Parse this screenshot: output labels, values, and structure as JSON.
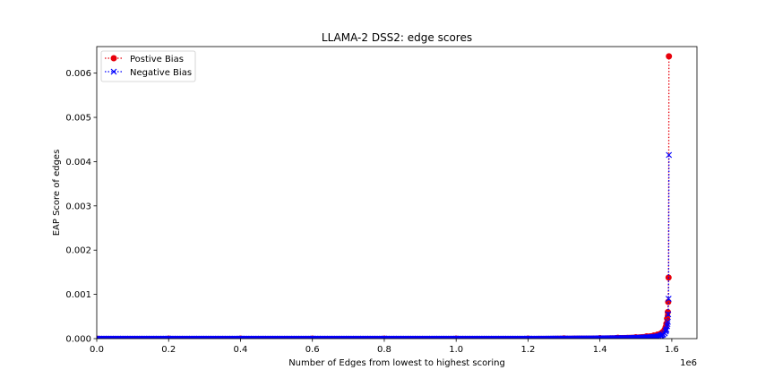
{
  "chart_data": {
    "type": "line",
    "title": "LLAMA-2 DSS2: edge scores",
    "xlabel": "Number of Edges from lowest to highest scoring",
    "ylabel": "EAP Score of edges",
    "x_offset_label": "1e6",
    "xlim": [
      0,
      1.67
    ],
    "ylim": [
      0,
      0.0066
    ],
    "x_ticks": [
      0.0,
      0.2,
      0.4,
      0.6,
      0.8,
      1.0,
      1.2,
      1.4,
      1.6
    ],
    "x_tick_labels": [
      "0.0",
      "0.2",
      "0.4",
      "0.6",
      "0.8",
      "1.0",
      "1.2",
      "1.4",
      "1.6"
    ],
    "y_ticks": [
      0.0,
      0.001,
      0.002,
      0.003,
      0.004,
      0.005,
      0.006
    ],
    "y_tick_labels": [
      "0.000",
      "0.001",
      "0.002",
      "0.003",
      "0.004",
      "0.005",
      "0.006"
    ],
    "grid": false,
    "legend_position": "upper-left",
    "series": [
      {
        "name": "Postive Bias",
        "color": "#e8000b",
        "marker": "circle",
        "linestyle": "dotted",
        "x": [
          0.0,
          0.2,
          0.4,
          0.6,
          0.8,
          1.0,
          1.2,
          1.3,
          1.4,
          1.45,
          1.5,
          1.53,
          1.55,
          1.56,
          1.57,
          1.575,
          1.58,
          1.583,
          1.585,
          1.587,
          1.589,
          1.59,
          1.591,
          1.592
        ],
        "y": [
          0.0,
          0.0,
          0.0,
          0.0,
          0.0,
          0.0,
          0.0,
          5e-06,
          1e-05,
          1.8e-05,
          3e-05,
          5e-05,
          7e-05,
          9e-05,
          0.00012,
          0.00015,
          0.0002,
          0.00026,
          0.00034,
          0.00045,
          0.0006,
          0.00083,
          0.00138,
          0.00638
        ]
      },
      {
        "name": "Negative Bias",
        "color": "#0000ff",
        "marker": "x",
        "linestyle": "dotted",
        "x": [
          0.0,
          0.2,
          0.4,
          0.6,
          0.8,
          1.0,
          1.2,
          1.3,
          1.4,
          1.45,
          1.5,
          1.53,
          1.55,
          1.56,
          1.57,
          1.575,
          1.58,
          1.583,
          1.585,
          1.587,
          1.589,
          1.59,
          1.591,
          1.592
        ],
        "y": [
          0.0,
          0.0,
          0.0,
          0.0,
          0.0,
          0.0,
          0.0,
          3e-06,
          7e-06,
          1.2e-05,
          2e-05,
          3e-05,
          4e-05,
          5e-05,
          7e-05,
          9e-05,
          0.00012,
          0.00016,
          0.00021,
          0.00028,
          0.00038,
          0.00055,
          0.0009,
          0.00415
        ]
      }
    ]
  }
}
